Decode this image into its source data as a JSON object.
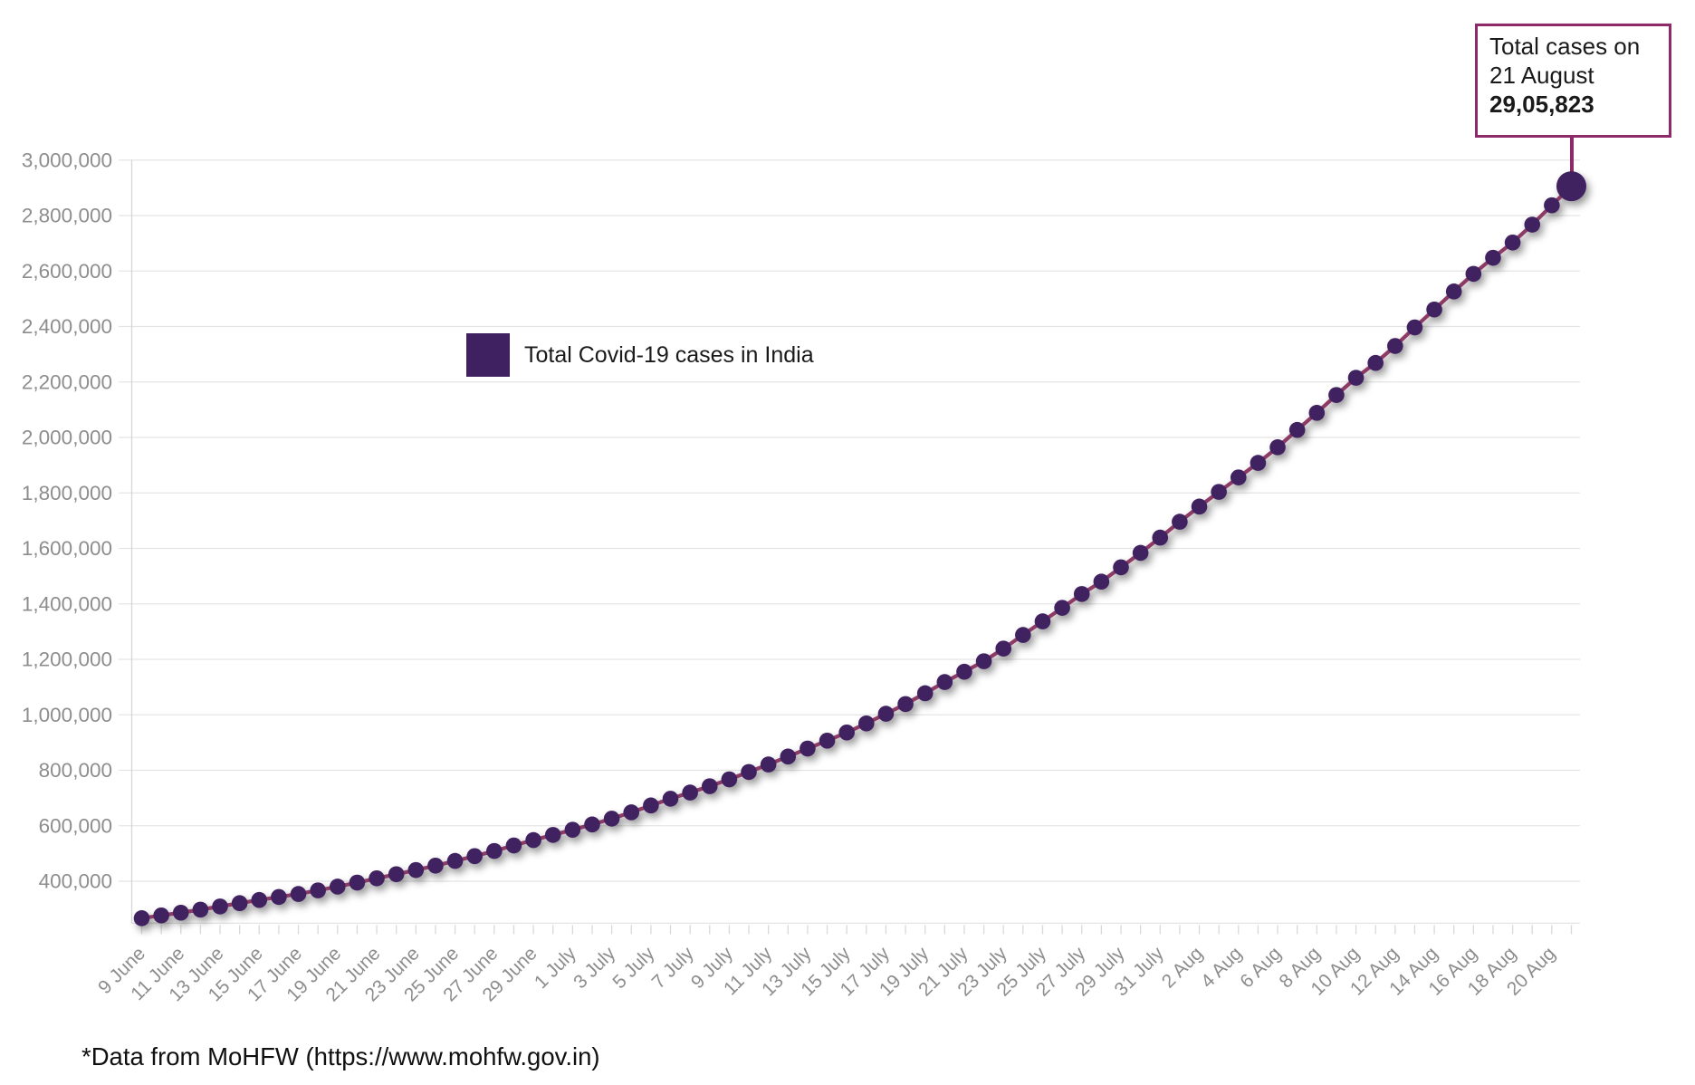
{
  "chart_data": {
    "type": "line",
    "title": "",
    "xlabel": "",
    "ylabel": "",
    "legend": {
      "label": "Total Covid-19 cases in India",
      "position": "inside-upper-left"
    },
    "x": [
      "9 June",
      "10 June",
      "11 June",
      "12 June",
      "13 June",
      "14 June",
      "15 June",
      "16 June",
      "17 June",
      "18 June",
      "19 June",
      "20 June",
      "21 June",
      "22 June",
      "23 June",
      "24 June",
      "25 June",
      "26 June",
      "27 June",
      "28 June",
      "29 June",
      "30 June",
      "1 July",
      "2 July",
      "3 July",
      "4 July",
      "5 July",
      "6 July",
      "7 July",
      "8 July",
      "9 July",
      "10 July",
      "11 July",
      "12 July",
      "13 July",
      "14 July",
      "15 July",
      "16 July",
      "17 July",
      "18 July",
      "19 July",
      "20 July",
      "21 July",
      "22 July",
      "23 July",
      "24 July",
      "25 July",
      "26 July",
      "27 July",
      "28 July",
      "29 July",
      "30 July",
      "31 July",
      "1 Aug",
      "2 Aug",
      "3 Aug",
      "4 Aug",
      "5 Aug",
      "6 Aug",
      "7 Aug",
      "8 Aug",
      "9 Aug",
      "10 Aug",
      "11 Aug",
      "12 Aug",
      "13 Aug",
      "14 Aug",
      "15 Aug",
      "16 Aug",
      "17 Aug",
      "18 Aug",
      "19 Aug",
      "20 Aug",
      "21 Aug"
    ],
    "series": [
      {
        "name": "Total Covid-19 cases in India",
        "values": [
          266598,
          276583,
          286579,
          297535,
          308993,
          320922,
          332424,
          343091,
          354065,
          366946,
          380532,
          395048,
          410461,
          425282,
          440215,
          456183,
          473105,
          490401,
          508953,
          528859,
          548318,
          566840,
          585493,
          604641,
          625544,
          648315,
          673165,
          697413,
          719665,
          742417,
          767296,
          793802,
          820916,
          849553,
          878254,
          906752,
          936181,
          968876,
          1003832,
          1038716,
          1077618,
          1118043,
          1155191,
          1193078,
          1238635,
          1287945,
          1336861,
          1385522,
          1435453,
          1480073,
          1531669,
          1583792,
          1638870,
          1695988,
          1750723,
          1803695,
          1855745,
          1908254,
          1964536,
          2027074,
          2088611,
          2153010,
          2215074,
          2268675,
          2329638,
          2396637,
          2461190,
          2526192,
          2589682,
          2647663,
          2702742,
          2767253,
          2836925,
          2905823
        ]
      }
    ],
    "x_tick_label_every_n_days": 2,
    "yaxis": {
      "min": 400000,
      "max": 3000000,
      "step": 200000,
      "tick_labels": [
        "400,000",
        "600,000",
        "800,000",
        "1,000,000",
        "1,200,000",
        "1,400,000",
        "1,600,000",
        "1,800,000",
        "2,000,000",
        "2,200,000",
        "2,400,000",
        "2,600,000",
        "2,800,000",
        "3,000,000"
      ]
    },
    "grid": "horizontal",
    "annotation": {
      "line1": "Total cases on",
      "line2": "21 August",
      "value_label": "29,05,823",
      "points_to": "21 Aug"
    },
    "source_note": "*Data from MoHFW (https://www.mohfw.gov.in)",
    "colors": {
      "point": "#3f2161",
      "connecting_line": "#8d3a65",
      "annotation_accent": "#8e2a69",
      "gridline": "#e4e4e4",
      "axis_line": "#d6d6d6",
      "tick_mark": "#d8d8d8",
      "axis_text": "#8d8d8d",
      "text": "#1a1a1a"
    }
  }
}
